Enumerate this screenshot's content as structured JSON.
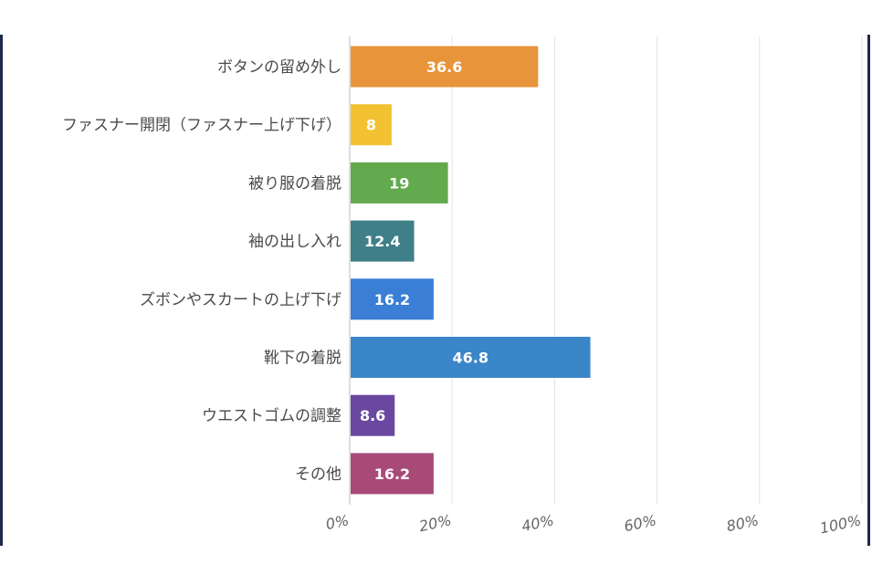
{
  "chart_data": {
    "type": "bar",
    "orientation": "horizontal",
    "categories": [
      "ボタンの留め外し",
      "ファスナー開閉（ファスナー上げ下げ）",
      "被り服の着脱",
      "袖の出し入れ",
      "ズボンやスカートの上げ下げ",
      "靴下の着脱",
      "ウエストゴムの調整",
      "その他"
    ],
    "values": [
      36.6,
      8,
      19,
      12.4,
      16.2,
      46.8,
      8.6,
      16.2
    ],
    "value_labels": [
      "36.6",
      "8",
      "19",
      "12.4",
      "16.2",
      "46.8",
      "8.6",
      "16.2"
    ],
    "colors": [
      "#e8943a",
      "#f2c232",
      "#63a94e",
      "#3f7f88",
      "#3a7ed6",
      "#3b86c8",
      "#6a48a0",
      "#a84a78"
    ],
    "xlim": [
      0,
      100
    ],
    "x_ticks": [
      0,
      20,
      40,
      60,
      80,
      100
    ],
    "x_tick_labels": [
      "0%",
      "20%",
      "40%",
      "60%",
      "80%",
      "100%"
    ],
    "grid": true,
    "title": "",
    "xlabel": "",
    "ylabel": ""
  }
}
